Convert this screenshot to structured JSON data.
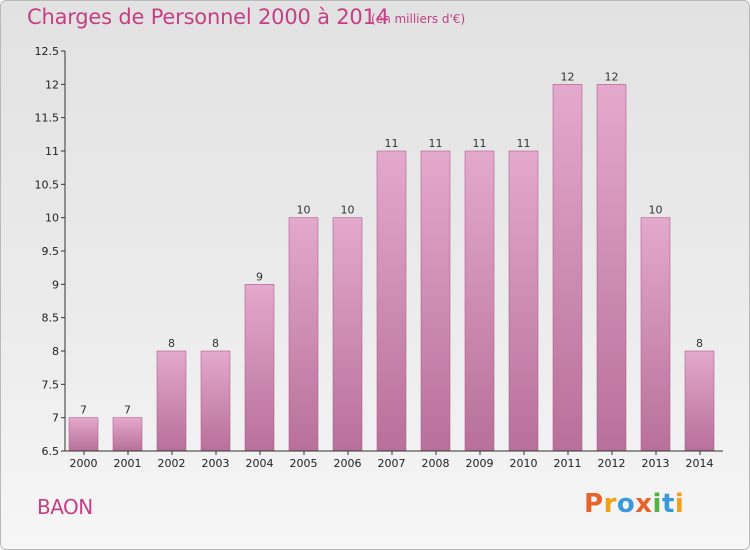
{
  "header": {
    "title": "Charges de Personnel 2000 à 2014",
    "subtitle": "(en milliers d'€)"
  },
  "footer": {
    "place": "BAON",
    "logo_text": "Proxiti"
  },
  "colors": {
    "title": "#c43f84",
    "bar_top": "#e4a9cc",
    "bar_bottom": "#b8709a",
    "bar_edge": "#b06090",
    "logo": [
      "#e8632a",
      "#f2a01c",
      "#3a9ad9",
      "#e8632a",
      "#55b046",
      "#3a9ad9",
      "#f2a01c"
    ]
  },
  "chart_data": {
    "type": "bar",
    "title": "Charges de Personnel 2000 à 2014",
    "subtitle": "(en milliers d'€)",
    "categories": [
      "2000",
      "2001",
      "2002",
      "2003",
      "2004",
      "2005",
      "2006",
      "2007",
      "2008",
      "2009",
      "2010",
      "2011",
      "2012",
      "2013",
      "2014"
    ],
    "values": [
      7,
      7,
      8,
      8,
      9,
      10,
      10,
      11,
      11,
      11,
      11,
      12,
      12,
      10,
      8
    ],
    "data_labels": [
      "7",
      "7",
      "8",
      "8",
      "9",
      "10",
      "10",
      "11",
      "11",
      "11",
      "11",
      "12",
      "12",
      "10",
      "8"
    ],
    "ylim": [
      6.5,
      12.5
    ],
    "yticks": [
      6.5,
      7,
      7.5,
      8,
      8.5,
      9,
      9.5,
      10,
      10.5,
      11,
      11.5,
      12,
      12.5
    ],
    "ytick_labels": [
      "6.5",
      "7",
      "7.5",
      "8",
      "8.5",
      "9",
      "9.5",
      "10",
      "10.5",
      "11",
      "11.5",
      "12",
      "12.5"
    ],
    "grid": false,
    "legend": "none"
  }
}
